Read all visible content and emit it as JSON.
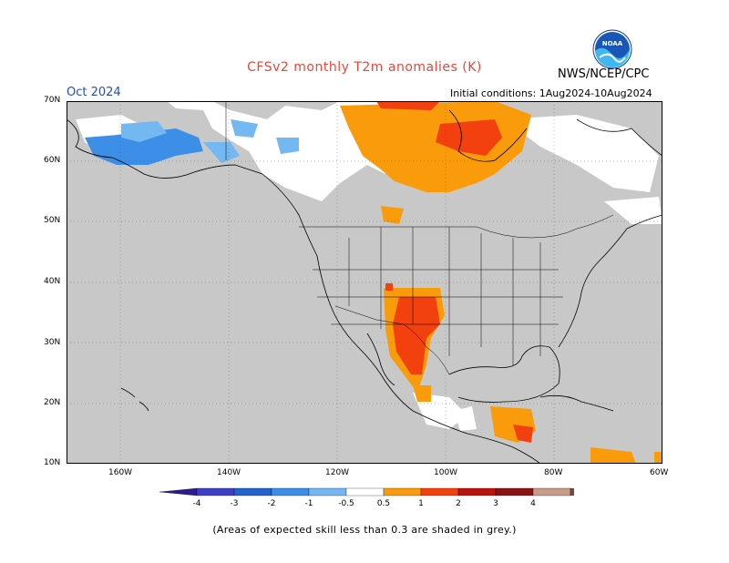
{
  "header": {
    "title": "CFSv2 monthly T2m anomalies (K)",
    "month": "Oct 2024",
    "initial_conditions": "Initial conditions: 1Aug2024-10Aug2024",
    "agency": "NWS/NCEP/CPC",
    "logo_text": "NOAA"
  },
  "map": {
    "lat_labels": [
      "70N",
      "60N",
      "50N",
      "40N",
      "30N",
      "20N",
      "10N"
    ],
    "lon_labels": [
      "160W",
      "140W",
      "120W",
      "100W",
      "80W",
      "60W"
    ],
    "lat_range": [
      10,
      70
    ],
    "lon_range": [
      -170,
      -60
    ],
    "colors": {
      "skill_grey": "#c8c8c8",
      "land_white": "#ffffff",
      "coast": "#000000"
    }
  },
  "colorbar": {
    "ticks": [
      "-4",
      "-3",
      "-2",
      "-1",
      "-0.5",
      "0.5",
      "1",
      "2",
      "3",
      "4"
    ],
    "bins": [
      {
        "range": "< -4",
        "color": "#2a1b8f"
      },
      {
        "range": "-4 to -3",
        "color": "#3d3fc6"
      },
      {
        "range": "-3 to -2",
        "color": "#2162cc"
      },
      {
        "range": "-2 to -1",
        "color": "#3c8ee6"
      },
      {
        "range": "-1 to -0.5",
        "color": "#74b8f2"
      },
      {
        "range": "-0.5 to 0.5",
        "color": "#ffffff"
      },
      {
        "range": "0.5 to 1",
        "color": "#f99b0b"
      },
      {
        "range": "1 to 2",
        "color": "#f2400f"
      },
      {
        "range": "2 to 3",
        "color": "#b8140d"
      },
      {
        "range": "3 to 4",
        "color": "#8b1212"
      },
      {
        "range": "4 to 5",
        "color": "#c89a8a"
      },
      {
        "range": "> 5",
        "color": "#7a4a40"
      }
    ]
  },
  "footnote": "(Areas of expected skill less than 0.3 are shaded in grey.)"
}
